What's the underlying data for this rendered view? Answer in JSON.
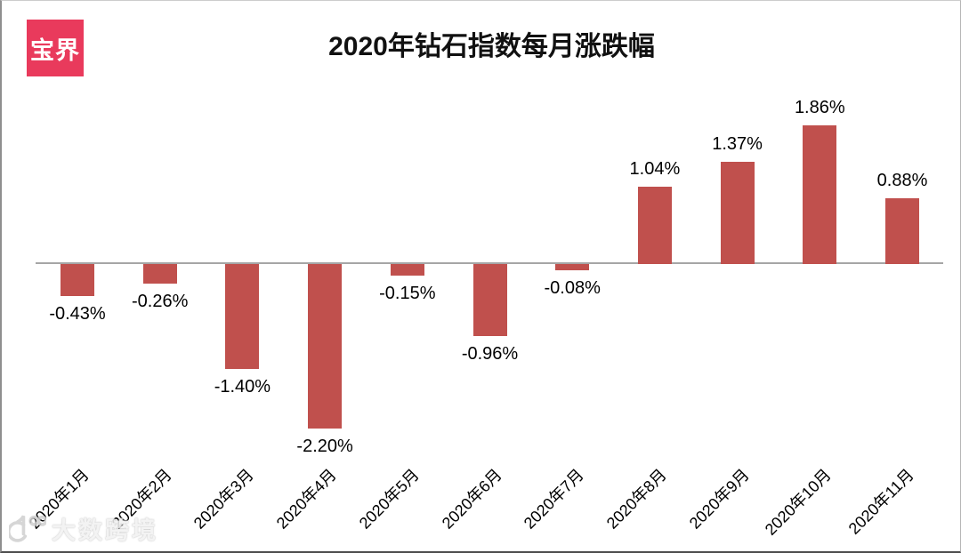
{
  "logo": {
    "text": "宝界",
    "bg_color": "#E93A5C",
    "text_color": "#ffffff"
  },
  "title": "2020年钻石指数每月涨跌幅",
  "watermark": {
    "text": "大数跨境",
    "icon": "dashukuajing-logo"
  },
  "chart_data": {
    "type": "bar",
    "title": "2020年钻石指数每月涨跌幅",
    "categories": [
      "2020年1月",
      "2020年2月",
      "2020年3月",
      "2020年4月",
      "2020年5月",
      "2020年6月",
      "2020年7月",
      "2020年8月",
      "2020年9月",
      "2020年10月",
      "2020年11月"
    ],
    "values": [
      -0.43,
      -0.26,
      -1.4,
      -2.2,
      -0.15,
      -0.96,
      -0.08,
      1.04,
      1.37,
      1.86,
      0.88
    ],
    "value_labels": [
      "-0.43%",
      "-0.26%",
      "-1.40%",
      "-2.20%",
      "-0.15%",
      "-0.96%",
      "-0.08%",
      "1.04%",
      "1.37%",
      "1.86%",
      "0.88%"
    ],
    "bar_color": "#C0504D",
    "axis_color": "#A6A6A6",
    "ylim": [
      -2.5,
      2.2
    ],
    "grid": false,
    "legend": false,
    "label_position": "outside-end"
  }
}
